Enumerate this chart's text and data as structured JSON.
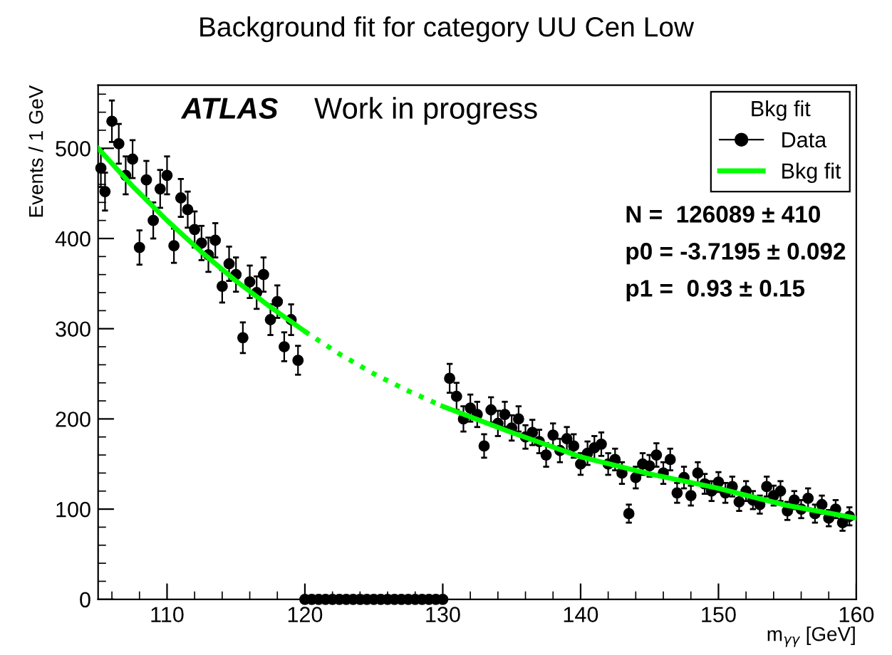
{
  "chart_data": {
    "type": "scatter",
    "title": "Background fit for category UU Cen Low",
    "xlabel": "m$_{γγ}$ [GeV]",
    "ylabel": "Events / 1 GeV",
    "xlim": [
      105,
      160
    ],
    "ylim": [
      0,
      570
    ],
    "xticks": [
      110,
      120,
      130,
      140,
      150,
      160
    ],
    "yticks": [
      0,
      100,
      200,
      300,
      400,
      500
    ],
    "grid": false,
    "legend": "top right",
    "legend_title": "Bkg fit",
    "annotations": [
      "ATLAS",
      "Work in progress",
      "N =  126089 ± 410",
      "p0 = -3.7195 ± 0.092",
      "p1 =  0.93 ± 0.15"
    ],
    "series": [
      {
        "name": "Data",
        "color": "#000000",
        "marker": "circle",
        "x": [
          105.2,
          105.5,
          106,
          106.5,
          107,
          107.5,
          108,
          108.5,
          109,
          109.5,
          110,
          110.5,
          111,
          111.5,
          112,
          112.5,
          113,
          113.5,
          114,
          114.5,
          115,
          115.5,
          116,
          116.5,
          117,
          117.5,
          118,
          118.5,
          119,
          119.5,
          120,
          120.5,
          121,
          121.5,
          122,
          122.5,
          123,
          123.5,
          124,
          124.5,
          125,
          125.5,
          126,
          126.5,
          127,
          127.5,
          128,
          128.5,
          129,
          129.5,
          130,
          130.5,
          131,
          131.5,
          132,
          132.5,
          133,
          133.5,
          134,
          134.5,
          135,
          135.5,
          136,
          136.5,
          137,
          137.5,
          138,
          138.5,
          139,
          139.5,
          140,
          140.5,
          141,
          141.5,
          142,
          142.5,
          143,
          143.5,
          144,
          144.5,
          145,
          145.5,
          146,
          146.5,
          147,
          147.5,
          148,
          148.5,
          149,
          149.5,
          150,
          150.5,
          151,
          151.5,
          152,
          152.5,
          153,
          153.5,
          154,
          154.5,
          155,
          155.5,
          156,
          156.5,
          157,
          157.5,
          158,
          158.5,
          159,
          159.5
        ],
        "values": [
          478,
          452,
          530,
          505,
          470,
          488,
          390,
          465,
          420,
          455,
          470,
          392,
          445,
          432,
          410,
          395,
          382,
          398,
          347,
          372,
          360,
          290,
          352,
          340,
          360,
          310,
          330,
          280,
          310,
          265,
          0,
          0,
          0,
          0,
          0,
          0,
          0,
          0,
          0,
          0,
          0,
          0,
          0,
          0,
          0,
          0,
          0,
          0,
          0,
          0,
          0,
          245,
          225,
          200,
          212,
          205,
          170,
          210,
          195,
          205,
          190,
          200,
          180,
          185,
          175,
          160,
          182,
          165,
          178,
          170,
          150,
          162,
          168,
          172,
          150,
          155,
          140,
          95,
          135,
          150,
          148,
          160,
          140,
          155,
          118,
          135,
          115,
          140,
          128,
          120,
          130,
          118,
          125,
          108,
          120,
          110,
          105,
          125,
          115,
          120,
          98,
          110,
          100,
          112,
          95,
          105,
          90,
          100,
          85,
          92
        ],
        "errors": [
          21,
          21,
          23,
          22,
          21,
          21,
          19,
          21,
          20,
          21,
          21,
          19,
          21,
          20,
          20,
          19,
          19,
          19,
          18,
          19,
          19,
          17,
          18,
          18,
          19,
          17,
          18,
          16,
          17,
          16,
          null,
          null,
          null,
          null,
          null,
          null,
          null,
          null,
          null,
          null,
          null,
          null,
          null,
          null,
          null,
          null,
          null,
          null,
          null,
          null,
          null,
          16,
          15,
          14,
          15,
          14,
          13,
          14,
          14,
          14,
          14,
          14,
          13,
          14,
          13,
          13,
          13,
          13,
          13,
          13,
          12,
          13,
          13,
          13,
          12,
          12,
          12,
          10,
          12,
          12,
          12,
          13,
          12,
          12,
          11,
          12,
          11,
          12,
          11,
          11,
          11,
          11,
          11,
          10,
          11,
          10,
          10,
          11,
          11,
          11,
          10,
          10,
          10,
          11,
          10,
          10,
          9,
          10,
          9,
          10
        ]
      },
      {
        "name": "Bkg fit",
        "type": "line",
        "color": "#00ff00",
        "line_style": "solid",
        "x": [
          105,
          107.5,
          110,
          112.5,
          115,
          117.5,
          120
        ],
        "values": [
          500,
          458,
          420,
          385,
          353,
          324,
          297
        ]
      },
      {
        "type": "line",
        "color": "#00ff00",
        "line_style": "dotted",
        "x": [
          120,
          122.5,
          125,
          127.5,
          130
        ],
        "values": [
          297,
          272,
          250,
          231,
          214
        ]
      },
      {
        "type": "line",
        "color": "#00ff00",
        "line_style": "solid",
        "x": [
          130,
          135,
          140,
          145,
          150,
          155,
          160
        ],
        "values": [
          214,
          185,
          158,
          139,
          123,
          104,
          90
        ]
      }
    ]
  }
}
